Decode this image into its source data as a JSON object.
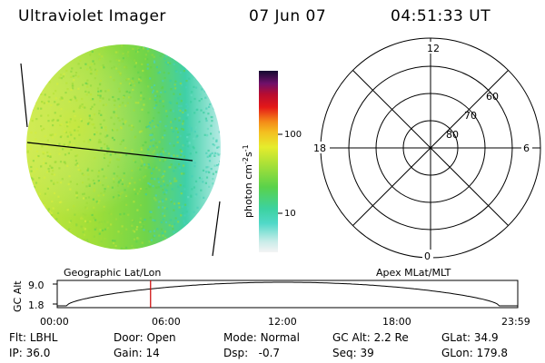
{
  "header": {
    "instrument": "Ultraviolet Imager",
    "date": "07 Jun 07",
    "time": "04:51:33 UT"
  },
  "colorbar": {
    "unit_label": "photon cm",
    "unit_exp1": "-2",
    "unit_mid": "s",
    "unit_exp2": "-1",
    "ticks": [
      "100",
      "10"
    ]
  },
  "polar_plot": {
    "lat_labels": [
      "80",
      "70",
      "60"
    ],
    "mlt_labels": {
      "top": "12",
      "bottom": "0",
      "left": "18",
      "right": "6"
    }
  },
  "orbit_panel": {
    "left_label": "Geographic Lat/Lon",
    "right_label": "Apex MLat/MLT",
    "y_axis_label": "GC Alt",
    "y_ticks": [
      "9.0",
      "1.8"
    ],
    "x_ticks": [
      "00:00",
      "06:00",
      "12:00",
      "18:00",
      "23:59"
    ],
    "current_time_fraction": 0.2027
  },
  "info": {
    "row1": [
      {
        "label": "Flt:",
        "value": "LBHL"
      },
      {
        "label": "Door:",
        "value": "Open"
      },
      {
        "label": "Mode:",
        "value": "Normal"
      },
      {
        "label": "GC Alt:",
        "value": "2.2 Re"
      },
      {
        "label": "GLat:",
        "value": "34.9"
      }
    ],
    "row2": [
      {
        "label": "IP:",
        "value": "36.0"
      },
      {
        "label": "Gain:",
        "value": "14"
      },
      {
        "label": "Dsp:",
        "value": "-0.7"
      },
      {
        "label": "Seq:",
        "value": "39"
      },
      {
        "label": "GLon:",
        "value": "179.8"
      }
    ]
  },
  "colors": {
    "image_left": "#c4e43a",
    "image_mid": "#7ed83a",
    "image_right": "#39d6b0",
    "limb": "#d8f0ec",
    "time_marker": "#cc0000"
  }
}
